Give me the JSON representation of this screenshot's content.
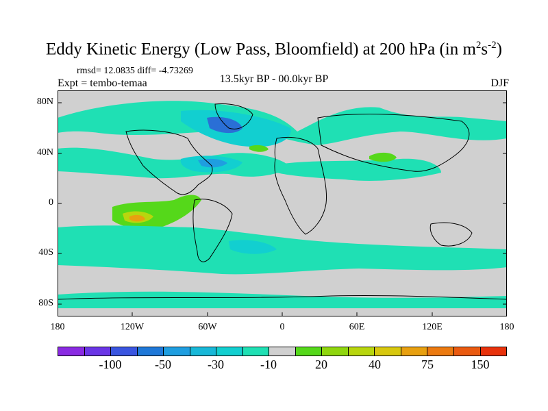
{
  "title": {
    "main": "Eddy Kinetic Energy (Low Pass, Bloomfield) at 200 hPa (in m",
    "sup1": "2",
    "mid": "s",
    "sup2": "-2",
    "end": ")"
  },
  "stats": "rmsd= 12.0835 diff= -4.73269",
  "expt": "Expt = tembo-temaa",
  "period": "13.5kyr BP - 00.0kyr BP",
  "season": "DJF",
  "lat_ticks": [
    "80N",
    "40N",
    "0",
    "40S",
    "80S"
  ],
  "lon_ticks": [
    "180",
    "120W",
    "60W",
    "0",
    "60E",
    "120E",
    "180"
  ],
  "colorbar": {
    "colors": [
      "#8a2be2",
      "#6a35e6",
      "#3a55e0",
      "#1f78d8",
      "#1f9ee0",
      "#18b8d8",
      "#12cfd0",
      "#1fe0b4",
      "#d0d0d0",
      "#55d81a",
      "#8fd60e",
      "#b8d60e",
      "#d8c80e",
      "#e8a010",
      "#ec7a10",
      "#ea5a10",
      "#e8320c"
    ],
    "labels": [
      "-100",
      "-50",
      "-30",
      "-10",
      "20",
      "40",
      "75",
      "150"
    ]
  },
  "map_colors": {
    "background": "#d0d0d0",
    "light_cyan": "#1fe0b4",
    "cyan": "#12cfd0",
    "blue": "#1f9ee0",
    "deep_blue": "#2a6fd6",
    "green": "#55d81a",
    "yellow_green": "#b8d60e",
    "orange": "#e8a010",
    "coast": "#000000"
  }
}
